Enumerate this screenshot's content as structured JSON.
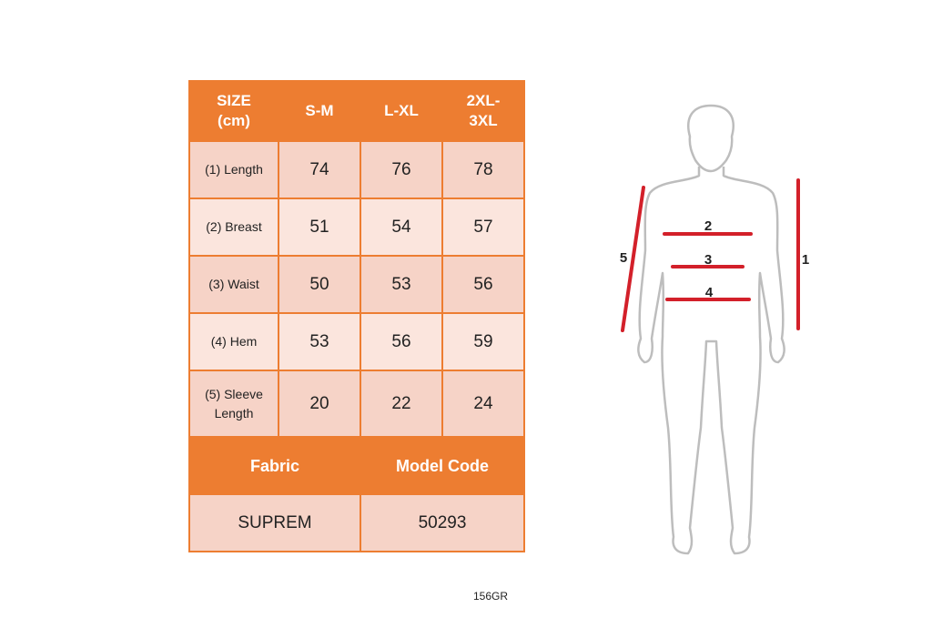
{
  "table": {
    "headers": [
      "SIZE\n(cm)",
      "S-M",
      "L-XL",
      "2XL-\n3XL"
    ],
    "rows": [
      {
        "label": "(1) Length",
        "values": [
          "74",
          "76",
          "78"
        ]
      },
      {
        "label": "(2) Breast",
        "values": [
          "51",
          "54",
          "57"
        ]
      },
      {
        "label": "(3) Waist",
        "values": [
          "50",
          "53",
          "56"
        ]
      },
      {
        "label": "(4) Hem",
        "values": [
          "53",
          "56",
          "59"
        ]
      },
      {
        "label": "(5) Sleeve\nLength",
        "values": [
          "20",
          "22",
          "24"
        ]
      }
    ],
    "fabric_label": "Fabric",
    "model_code_label": "Model Code",
    "fabric_value": "SUPREM",
    "model_code_value": "50293"
  },
  "footer_note": "156GR",
  "diagram": {
    "labels": [
      "1",
      "2",
      "3",
      "4",
      "5"
    ],
    "line_color": "#D3202A",
    "outline_color": "#BDBDBD"
  },
  "colors": {
    "orange": "#ED7D31",
    "cell_dark": "#F6D3C7",
    "cell_light": "#FBE5DD"
  }
}
